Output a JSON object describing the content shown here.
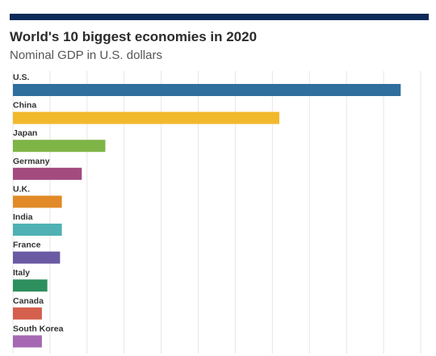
{
  "header": {
    "title": "World's 10 biggest economies in 2020",
    "subtitle": "Nominal GDP in U.S. dollars"
  },
  "chart_data": {
    "type": "bar",
    "orientation": "horizontal",
    "title": "World's 10 biggest economies in 2020",
    "subtitle": "Nominal GDP in U.S. dollars",
    "categories": [
      "U.S.",
      "China",
      "Japan",
      "Germany",
      "U.K.",
      "India",
      "France",
      "Italy",
      "Canada",
      "South Korea"
    ],
    "values": [
      21.4,
      14.7,
      5.1,
      3.8,
      2.7,
      2.7,
      2.6,
      1.9,
      1.6,
      1.6
    ],
    "colors": [
      "#2e6f9e",
      "#f2b82c",
      "#7fb446",
      "#a34a7f",
      "#e18a27",
      "#4fb1b3",
      "#6a5aa3",
      "#2e8f5e",
      "#d45f4d",
      "#a569b3"
    ],
    "xlim": [
      0,
      22.5
    ],
    "grid": true,
    "xlabel": "",
    "ylabel": ""
  }
}
